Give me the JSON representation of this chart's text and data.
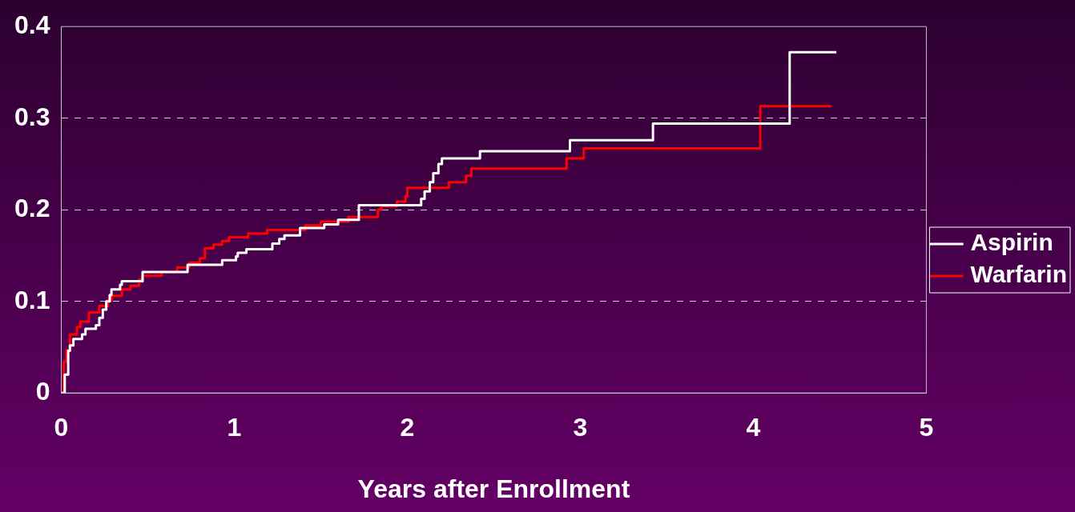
{
  "chart_data": {
    "type": "step",
    "xlabel": "Years after Enrollment",
    "xlim": [
      0,
      5
    ],
    "xticks": [
      0,
      1,
      2,
      3,
      4,
      5
    ],
    "ylim": [
      0,
      0.4
    ],
    "yticks": [
      0,
      0.1,
      0.2,
      0.3,
      0.4
    ],
    "grid": "y",
    "legend": "right",
    "line_style": "solid",
    "marker": "none",
    "series": [
      {
        "name": "Aspirin",
        "color": "#ffffff",
        "x": [
          0,
          0.02,
          0.04,
          0.05,
          0.07,
          0.12,
          0.14,
          0.2,
          0.22,
          0.24,
          0.26,
          0.28,
          0.29,
          0.34,
          0.35,
          0.47,
          0.73,
          0.93,
          1.01,
          1.02,
          1.07,
          1.22,
          1.26,
          1.29,
          1.38,
          1.52,
          1.6,
          1.72,
          2.08,
          2.1,
          2.13,
          2.15,
          2.18,
          2.2,
          2.42,
          2.94,
          3.42,
          4.21,
          4.48
        ],
        "values": [
          0,
          0.02,
          0.046,
          0.052,
          0.059,
          0.064,
          0.07,
          0.074,
          0.082,
          0.091,
          0.1,
          0.107,
          0.113,
          0.118,
          0.122,
          0.132,
          0.14,
          0.145,
          0.149,
          0.153,
          0.157,
          0.163,
          0.168,
          0.172,
          0.18,
          0.184,
          0.189,
          0.205,
          0.212,
          0.22,
          0.23,
          0.24,
          0.25,
          0.256,
          0.264,
          0.276,
          0.294,
          0.372,
          0.372
        ]
      },
      {
        "name": "Warfarin",
        "color": "#ff0000",
        "x": [
          0,
          0.015,
          0.03,
          0.05,
          0.09,
          0.11,
          0.16,
          0.22,
          0.27,
          0.29,
          0.35,
          0.4,
          0.45,
          0.47,
          0.58,
          0.67,
          0.74,
          0.8,
          0.83,
          0.88,
          0.93,
          0.97,
          1.08,
          1.19,
          1.41,
          1.5,
          1.66,
          1.83,
          1.85,
          1.94,
          1.99,
          2.0,
          2.24,
          2.34,
          2.37,
          2.92,
          3.02,
          4.04,
          4.45
        ],
        "values": [
          0,
          0.034,
          0.047,
          0.064,
          0.072,
          0.078,
          0.088,
          0.095,
          0.101,
          0.106,
          0.113,
          0.117,
          0.124,
          0.128,
          0.132,
          0.137,
          0.142,
          0.147,
          0.158,
          0.162,
          0.166,
          0.17,
          0.174,
          0.178,
          0.183,
          0.187,
          0.192,
          0.2,
          0.204,
          0.209,
          0.215,
          0.224,
          0.23,
          0.237,
          0.245,
          0.256,
          0.267,
          0.313,
          0.313
        ]
      }
    ]
  }
}
